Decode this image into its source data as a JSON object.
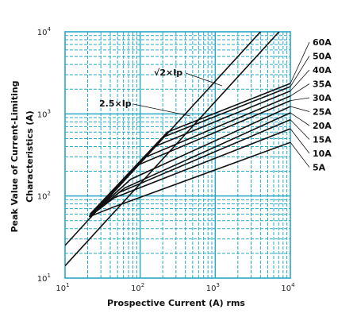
{
  "chart_data": {
    "type": "line",
    "x_scale": "log",
    "y_scale": "log",
    "xlim": [
      10,
      10000
    ],
    "ylim": [
      10,
      10000
    ],
    "xlabel": "Prospective Current (A) rms",
    "ylabel_line1": "Peak Value of Current-Limiting",
    "ylabel_line2": "Characteristics (A)",
    "x_ticks": [
      {
        "base": "10",
        "exp": "1",
        "value": 10
      },
      {
        "base": "10",
        "exp": "2",
        "value": 100
      },
      {
        "base": "10",
        "exp": "3",
        "value": 1000
      },
      {
        "base": "10",
        "exp": "4",
        "value": 10000
      }
    ],
    "y_ticks": [
      {
        "base": "10",
        "exp": "1",
        "value": 10
      },
      {
        "base": "10",
        "exp": "2",
        "value": 100
      },
      {
        "base": "10",
        "exp": "3",
        "value": 1000
      },
      {
        "base": "10",
        "exp": "4",
        "value": 10000
      }
    ],
    "grid": true,
    "grid_color": "#29a9c6",
    "line_color": "#111111",
    "reference_lines": [
      {
        "label": "√2×Ip",
        "points": [
          [
            10,
            14.1
          ],
          [
            10000,
            14142
          ]
        ]
      },
      {
        "label": "2.5×Ip",
        "points": [
          [
            10,
            25
          ],
          [
            10000,
            25000
          ]
        ]
      }
    ],
    "series": [
      {
        "name": "60A",
        "points": [
          [
            21.5,
            60
          ],
          [
            230,
            600
          ],
          [
            10000,
            2350
          ]
        ]
      },
      {
        "name": "50A",
        "points": [
          [
            21,
            56
          ],
          [
            200,
            520
          ],
          [
            10000,
            2150
          ]
        ]
      },
      {
        "name": "40A",
        "points": [
          [
            21,
            56
          ],
          [
            155,
            400
          ],
          [
            10000,
            1900
          ]
        ]
      },
      {
        "name": "35A",
        "points": [
          [
            21,
            56
          ],
          [
            120,
            300
          ],
          [
            10000,
            1650
          ]
        ]
      },
      {
        "name": "30A",
        "points": [
          [
            21,
            56
          ],
          [
            95,
            240
          ],
          [
            10000,
            1450
          ]
        ]
      },
      {
        "name": "25A",
        "points": [
          [
            21,
            56
          ],
          [
            75,
            160
          ],
          [
            10000,
            1230
          ]
        ]
      },
      {
        "name": "20A",
        "points": [
          [
            21,
            56
          ],
          [
            62,
            125
          ],
          [
            10000,
            1030
          ]
        ]
      },
      {
        "name": "15A",
        "points": [
          [
            21,
            56
          ],
          [
            52,
            110
          ],
          [
            10000,
            850
          ]
        ]
      },
      {
        "name": "10A",
        "points": [
          [
            21,
            56
          ],
          [
            45,
            95
          ],
          [
            10000,
            660
          ]
        ]
      },
      {
        "name": "5A",
        "points": [
          [
            21,
            56
          ],
          [
            42,
            72
          ],
          [
            10000,
            450
          ]
        ]
      }
    ]
  }
}
